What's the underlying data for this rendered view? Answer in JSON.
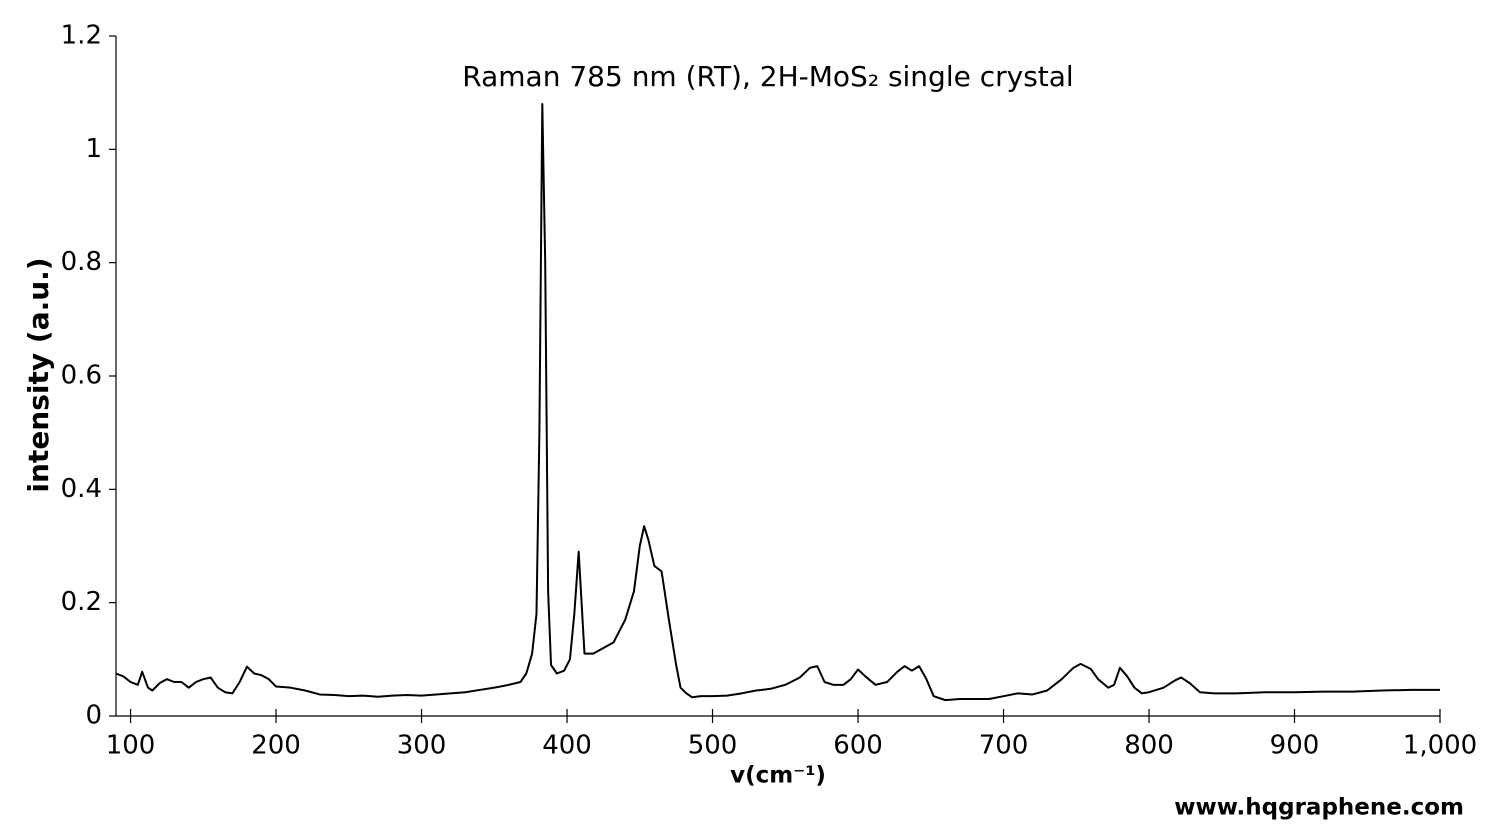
{
  "chart_data": {
    "type": "line",
    "title": "Raman 785 nm (RT), 2H-MoS₂ single crystal",
    "x_label": "v(cm⁻¹)",
    "y_label": "intensity (a.u.)",
    "watermark": "www.hqgraphene.com",
    "color": "#000000",
    "x": [
      90,
      95,
      100,
      105,
      108,
      112,
      115,
      120,
      125,
      130,
      135,
      140,
      145,
      150,
      155,
      160,
      165,
      170,
      175,
      180,
      185,
      190,
      195,
      200,
      210,
      220,
      230,
      240,
      250,
      260,
      270,
      280,
      290,
      300,
      310,
      320,
      330,
      340,
      350,
      360,
      368,
      372,
      376,
      379,
      381,
      383,
      385,
      387,
      389,
      393,
      398,
      402,
      405,
      408,
      410,
      412,
      418,
      425,
      432,
      440,
      446,
      450,
      453,
      456,
      460,
      465,
      470,
      475,
      478,
      482,
      486,
      492,
      500,
      510,
      520,
      530,
      540,
      550,
      560,
      567,
      572,
      577,
      583,
      590,
      595,
      600,
      605,
      612,
      620,
      627,
      632,
      637,
      642,
      647,
      652,
      660,
      670,
      680,
      690,
      700,
      710,
      720,
      730,
      740,
      748,
      753,
      760,
      765,
      772,
      776,
      780,
      785,
      790,
      795,
      800,
      810,
      818,
      822,
      828,
      835,
      845,
      860,
      880,
      900,
      920,
      940,
      960,
      980,
      1000
    ],
    "values": [
      0.075,
      0.07,
      0.06,
      0.055,
      0.078,
      0.05,
      0.045,
      0.058,
      0.065,
      0.06,
      0.06,
      0.05,
      0.06,
      0.065,
      0.068,
      0.05,
      0.042,
      0.04,
      0.06,
      0.087,
      0.075,
      0.072,
      0.065,
      0.052,
      0.05,
      0.045,
      0.038,
      0.037,
      0.035,
      0.036,
      0.034,
      0.036,
      0.037,
      0.036,
      0.038,
      0.04,
      0.042,
      0.046,
      0.05,
      0.055,
      0.06,
      0.075,
      0.11,
      0.18,
      0.5,
      1.08,
      0.8,
      0.22,
      0.09,
      0.075,
      0.08,
      0.1,
      0.18,
      0.29,
      0.2,
      0.11,
      0.11,
      0.12,
      0.13,
      0.17,
      0.22,
      0.3,
      0.335,
      0.31,
      0.265,
      0.255,
      0.17,
      0.09,
      0.05,
      0.04,
      0.033,
      0.035,
      0.035,
      0.036,
      0.04,
      0.045,
      0.048,
      0.055,
      0.068,
      0.085,
      0.088,
      0.06,
      0.055,
      0.055,
      0.065,
      0.082,
      0.07,
      0.055,
      0.06,
      0.078,
      0.088,
      0.08,
      0.088,
      0.065,
      0.035,
      0.028,
      0.03,
      0.03,
      0.03,
      0.035,
      0.04,
      0.038,
      0.045,
      0.065,
      0.085,
      0.092,
      0.083,
      0.065,
      0.05,
      0.055,
      0.085,
      0.07,
      0.05,
      0.04,
      0.042,
      0.05,
      0.063,
      0.068,
      0.058,
      0.042,
      0.04,
      0.04,
      0.042,
      0.042,
      0.043,
      0.043,
      0.045,
      0.046,
      0.046
    ],
    "xlim": [
      90,
      1000
    ],
    "xticks": [
      100,
      200,
      300,
      400,
      500,
      600,
      700,
      800,
      900,
      {
        "value": 1000,
        "label": "1,000"
      }
    ],
    "ylim": [
      0,
      1.2
    ],
    "yticks": [
      0,
      0.2,
      0.4,
      0.6,
      0.8,
      1,
      1.2
    ],
    "grid": false
  }
}
